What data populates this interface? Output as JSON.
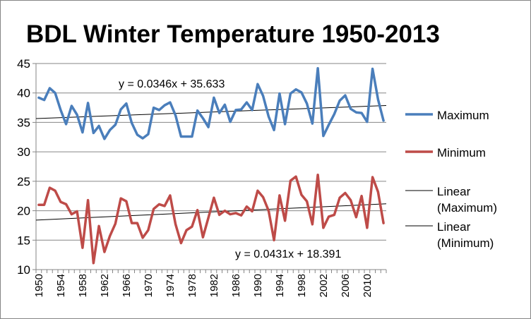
{
  "chart_data": {
    "type": "line",
    "title": "BDL Winter Temperature 1950-2013",
    "xlabel": "",
    "ylabel": "",
    "ylim": [
      10,
      45
    ],
    "yticks": [
      10,
      15,
      20,
      25,
      30,
      35,
      40,
      45
    ],
    "x": [
      1950,
      1951,
      1952,
      1953,
      1954,
      1955,
      1956,
      1957,
      1958,
      1959,
      1960,
      1961,
      1962,
      1963,
      1964,
      1965,
      1966,
      1967,
      1968,
      1969,
      1970,
      1971,
      1972,
      1973,
      1974,
      1975,
      1976,
      1977,
      1978,
      1979,
      1980,
      1981,
      1982,
      1983,
      1984,
      1985,
      1986,
      1987,
      1988,
      1989,
      1990,
      1991,
      1992,
      1993,
      1994,
      1995,
      1996,
      1997,
      1998,
      1999,
      2000,
      2001,
      2002,
      2003,
      2004,
      2005,
      2006,
      2007,
      2008,
      2009,
      2010,
      2011,
      2012,
      2013
    ],
    "xtick_labels": [
      "1950",
      "1954",
      "1958",
      "1962",
      "1966",
      "1970",
      "1974",
      "1978",
      "1982",
      "1986",
      "1990",
      "1994",
      "1998",
      "2002",
      "2006",
      "2010"
    ],
    "series": [
      {
        "name": "Maximum",
        "color": "#4a7ebb",
        "values": [
          39.2,
          38.8,
          40.8,
          40.0,
          37.1,
          34.7,
          37.8,
          36.3,
          33.3,
          38.3,
          33.2,
          34.4,
          32.2,
          33.7,
          34.6,
          37.2,
          38.2,
          34.9,
          32.9,
          32.3,
          33.0,
          37.5,
          37.1,
          37.9,
          38.4,
          36.2,
          32.6,
          32.6,
          32.6,
          37.0,
          35.7,
          34.2,
          39.2,
          36.6,
          38.0,
          35.1,
          37.1,
          37.2,
          38.4,
          37.1,
          41.5,
          39.5,
          36.0,
          33.7,
          39.9,
          34.7,
          39.9,
          40.6,
          40.1,
          38.2,
          34.8,
          44.2,
          32.7,
          34.6,
          36.4,
          38.7,
          39.6,
          37.3,
          36.7,
          36.6,
          35.1,
          44.1,
          38.9,
          35.3
        ]
      },
      {
        "name": "Minimum",
        "color": "#be4b48",
        "values": [
          21.0,
          21.0,
          23.9,
          23.4,
          21.5,
          21.1,
          19.4,
          19.9,
          13.7,
          21.8,
          11.1,
          17.4,
          13.0,
          15.7,
          17.8,
          22.1,
          21.6,
          17.9,
          17.9,
          15.4,
          16.7,
          20.3,
          21.1,
          20.8,
          22.6,
          17.7,
          14.5,
          16.7,
          17.3,
          20.1,
          15.5,
          18.8,
          22.2,
          19.3,
          20.0,
          19.4,
          19.6,
          19.2,
          20.7,
          19.9,
          23.4,
          22.3,
          20.0,
          15.0,
          22.6,
          18.3,
          25.1,
          25.8,
          22.7,
          21.6,
          17.7,
          26.1,
          17.1,
          19.0,
          19.3,
          22.2,
          23.0,
          21.8,
          18.9,
          22.5,
          17.1,
          25.7,
          23.2,
          17.9
        ]
      }
    ],
    "trendlines": [
      {
        "name": "Linear (Maximum)",
        "slope": 0.0346,
        "intercept": 35.633,
        "equation": "y = 0.0346x + 35.633",
        "color": "#000000"
      },
      {
        "name": "Linear (Minimum)",
        "slope": 0.0431,
        "intercept": 18.391,
        "equation": "y = 0.0431x + 18.391",
        "color": "#000000"
      }
    ],
    "legend": {
      "placement": "right",
      "entries": [
        {
          "label_lines": [
            "Maximum"
          ],
          "color": "#4a7ebb",
          "style": "thick"
        },
        {
          "label_lines": [
            "Minimum"
          ],
          "color": "#be4b48",
          "style": "thick"
        },
        {
          "label_lines": [
            "Linear",
            "(Maximum)"
          ],
          "color": "#000000",
          "style": "thin"
        },
        {
          "label_lines": [
            "Linear",
            "(Minimum)"
          ],
          "color": "#000000",
          "style": "thin"
        }
      ]
    },
    "grid": true
  }
}
